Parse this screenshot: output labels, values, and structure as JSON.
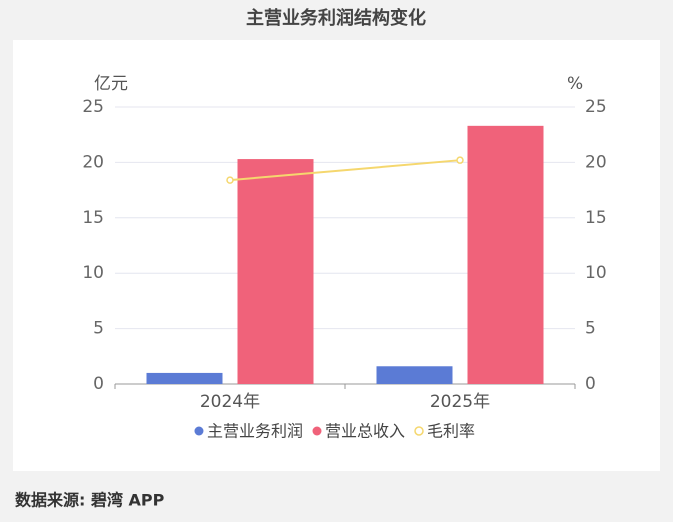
{
  "chart_data": {
    "type": "bar",
    "title": "主营业务利润结构变化",
    "y_label": "亿元",
    "y2_label": "%",
    "categories": [
      "2024年",
      "2025年"
    ],
    "series": [
      {
        "name": "主营业务利润",
        "color": "#5b7bd5",
        "values": [
          1.0,
          1.6
        ]
      },
      {
        "name": "营业总收入",
        "color": "#f0627a",
        "values": [
          20.3,
          23.3
        ]
      },
      {
        "name": "毛利率",
        "color": "#f5d76e",
        "type": "line",
        "axis": "y2",
        "values": [
          18.4,
          20.2
        ]
      }
    ],
    "ylim": [
      0,
      25
    ],
    "yticks": [
      0,
      5,
      10,
      15,
      20,
      25
    ],
    "y2lim": [
      0,
      25
    ],
    "y2ticks": [
      0,
      5,
      10,
      15,
      20,
      25
    ],
    "grid": true,
    "source": "数据来源: 碧湾 APP"
  }
}
